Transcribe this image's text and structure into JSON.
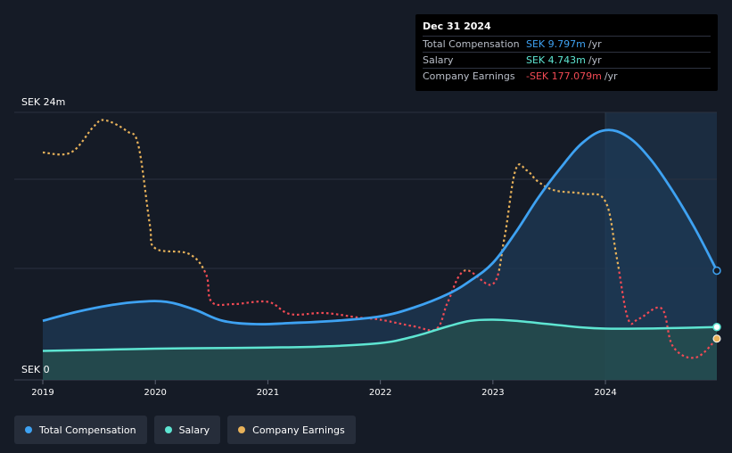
{
  "tooltip": {
    "date": "Dec 31 2024",
    "rows": [
      {
        "label": "Total Compensation",
        "value": "SEK 9.797m",
        "unit": "/yr"
      },
      {
        "label": "Salary",
        "value": "SEK 4.743m",
        "unit": "/yr"
      },
      {
        "label": "Company Earnings",
        "value": "-SEK 177.079m",
        "unit": "/yr"
      }
    ]
  },
  "legend": [
    {
      "label": "Total Compensation",
      "color": "#3ea2f2"
    },
    {
      "label": "Salary",
      "color": "#5ee5d2"
    },
    {
      "label": "Company Earnings",
      "color": "#e8b25a"
    }
  ],
  "chart_data": {
    "type": "line",
    "ylabel_top": "SEK 24m",
    "ylabel_bottom": "SEK 0",
    "ylim": [
      0,
      24
    ],
    "xlim": [
      2019.0,
      2024.99
    ],
    "x_ticks": [
      "2019",
      "2020",
      "2021",
      "2022",
      "2023",
      "2024"
    ],
    "highlight_from": 2024.0,
    "colors": {
      "comp": "#3ea2f2",
      "salary": "#5ee5d2",
      "earnings_pos": "#e8b25a",
      "earnings_neg": "#f24a54"
    },
    "series": [
      {
        "name": "Total Compensation",
        "x": [
          2019.0,
          2019.3,
          2019.6,
          2019.85,
          2020.1,
          2020.35,
          2020.6,
          2020.9,
          2021.2,
          2021.6,
          2022.0,
          2022.3,
          2022.6,
          2022.8,
          2023.0,
          2023.2,
          2023.4,
          2023.6,
          2023.8,
          2024.0,
          2024.2,
          2024.4,
          2024.6,
          2024.8,
          2024.99
        ],
        "values": [
          5.3,
          6.1,
          6.7,
          7.0,
          7.0,
          6.3,
          5.3,
          5.0,
          5.1,
          5.3,
          5.7,
          6.5,
          7.7,
          8.9,
          10.5,
          13.2,
          16.3,
          19.0,
          21.3,
          22.4,
          21.8,
          19.8,
          16.9,
          13.5,
          9.8
        ]
      },
      {
        "name": "Salary",
        "x": [
          2019.0,
          2019.5,
          2020.0,
          2020.5,
          2021.0,
          2021.5,
          2022.0,
          2022.3,
          2022.6,
          2022.8,
          2023.0,
          2023.2,
          2023.5,
          2023.8,
          2024.0,
          2024.3,
          2024.6,
          2024.99
        ],
        "values": [
          2.6,
          2.7,
          2.8,
          2.85,
          2.9,
          3.0,
          3.3,
          3.9,
          4.8,
          5.3,
          5.4,
          5.3,
          5.0,
          4.7,
          4.6,
          4.6,
          4.65,
          4.74
        ]
      },
      {
        "name": "Company Earnings",
        "x": [
          2019.0,
          2019.25,
          2019.45,
          2019.55,
          2019.75,
          2019.85,
          2019.95,
          2020.0,
          2020.3,
          2020.45,
          2020.5,
          2020.7,
          2021.0,
          2021.2,
          2021.5,
          2021.8,
          2022.0,
          2022.3,
          2022.5,
          2022.6,
          2022.75,
          2023.0,
          2023.1,
          2023.2,
          2023.3,
          2023.4,
          2023.55,
          2023.8,
          2024.0,
          2024.1,
          2024.2,
          2024.3,
          2024.5,
          2024.6,
          2024.8,
          2024.99
        ],
        "values": [
          20.4,
          20.4,
          22.7,
          23.3,
          22.3,
          21.0,
          14.0,
          11.8,
          11.3,
          9.5,
          7.0,
          6.8,
          7.0,
          5.9,
          6.0,
          5.6,
          5.4,
          4.8,
          4.6,
          7.0,
          9.8,
          8.6,
          12.6,
          18.8,
          18.8,
          17.8,
          17.0,
          16.7,
          16.0,
          11.0,
          5.5,
          5.5,
          6.4,
          3.0,
          2.0,
          3.7
        ]
      }
    ],
    "end_markers": true
  }
}
